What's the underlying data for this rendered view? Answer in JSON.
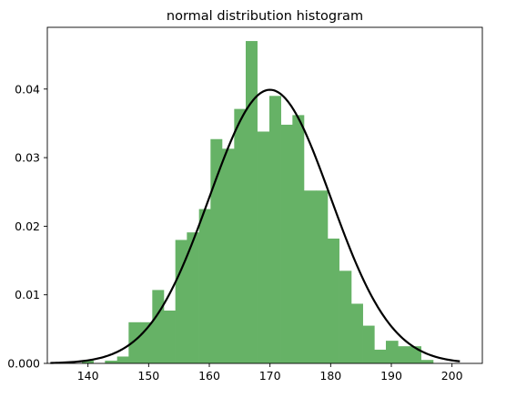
{
  "chart_data": {
    "type": "bar",
    "title": "normal distribution histogram",
    "xlabel": "",
    "ylabel": "",
    "xlim": [
      133.3,
      205.0
    ],
    "ylim": [
      0,
      0.049
    ],
    "grid": false,
    "xticks": [
      140,
      150,
      160,
      170,
      180,
      190,
      200
    ],
    "xtick_labels": [
      "140",
      "150",
      "160",
      "170",
      "180",
      "190",
      "200"
    ],
    "yticks": [
      0,
      0.01,
      0.02,
      0.03,
      0.04
    ],
    "ytick_labels": [
      "0.000",
      "0.01",
      "0.02",
      "0.03",
      "0.04"
    ],
    "bins": [
      {
        "x0": 139.0,
        "x1": 140.9,
        "value": 0.0004
      },
      {
        "x0": 140.9,
        "x1": 142.8,
        "value": 0.0
      },
      {
        "x0": 142.8,
        "x1": 144.8,
        "value": 0.0004
      },
      {
        "x0": 144.8,
        "x1": 146.7,
        "value": 0.001
      },
      {
        "x0": 146.7,
        "x1": 148.6,
        "value": 0.006
      },
      {
        "x0": 148.6,
        "x1": 150.6,
        "value": 0.006
      },
      {
        "x0": 150.6,
        "x1": 152.5,
        "value": 0.0107
      },
      {
        "x0": 152.5,
        "x1": 154.4,
        "value": 0.0077
      },
      {
        "x0": 154.4,
        "x1": 156.3,
        "value": 0.018
      },
      {
        "x0": 156.3,
        "x1": 158.3,
        "value": 0.0191
      },
      {
        "x0": 158.3,
        "x1": 160.2,
        "value": 0.0225
      },
      {
        "x0": 160.2,
        "x1": 162.1,
        "value": 0.0327
      },
      {
        "x0": 162.1,
        "x1": 164.1,
        "value": 0.0313
      },
      {
        "x0": 164.1,
        "x1": 166.0,
        "value": 0.0371
      },
      {
        "x0": 166.0,
        "x1": 167.9,
        "value": 0.047
      },
      {
        "x0": 167.9,
        "x1": 169.9,
        "value": 0.0338
      },
      {
        "x0": 169.9,
        "x1": 171.8,
        "value": 0.039
      },
      {
        "x0": 171.8,
        "x1": 173.7,
        "value": 0.0348
      },
      {
        "x0": 173.7,
        "x1": 175.6,
        "value": 0.0362
      },
      {
        "x0": 175.6,
        "x1": 177.6,
        "value": 0.0252
      },
      {
        "x0": 177.6,
        "x1": 179.5,
        "value": 0.0252
      },
      {
        "x0": 179.5,
        "x1": 181.4,
        "value": 0.0182
      },
      {
        "x0": 181.4,
        "x1": 183.4,
        "value": 0.0135
      },
      {
        "x0": 183.4,
        "x1": 185.3,
        "value": 0.0087
      },
      {
        "x0": 185.3,
        "x1": 187.2,
        "value": 0.0055
      },
      {
        "x0": 187.2,
        "x1": 189.1,
        "value": 0.002
      },
      {
        "x0": 189.1,
        "x1": 191.1,
        "value": 0.0033
      },
      {
        "x0": 191.1,
        "x1": 193.0,
        "value": 0.0025
      },
      {
        "x0": 193.0,
        "x1": 194.9,
        "value": 0.0025
      },
      {
        "x0": 194.9,
        "x1": 196.9,
        "value": 0.0005
      }
    ],
    "curve": {
      "type": "normal-pdf",
      "mean": 170,
      "std": 10,
      "x_range": [
        133.8,
        201.3
      ]
    },
    "bar_color": "#66b266",
    "curve_color": "#000000"
  }
}
